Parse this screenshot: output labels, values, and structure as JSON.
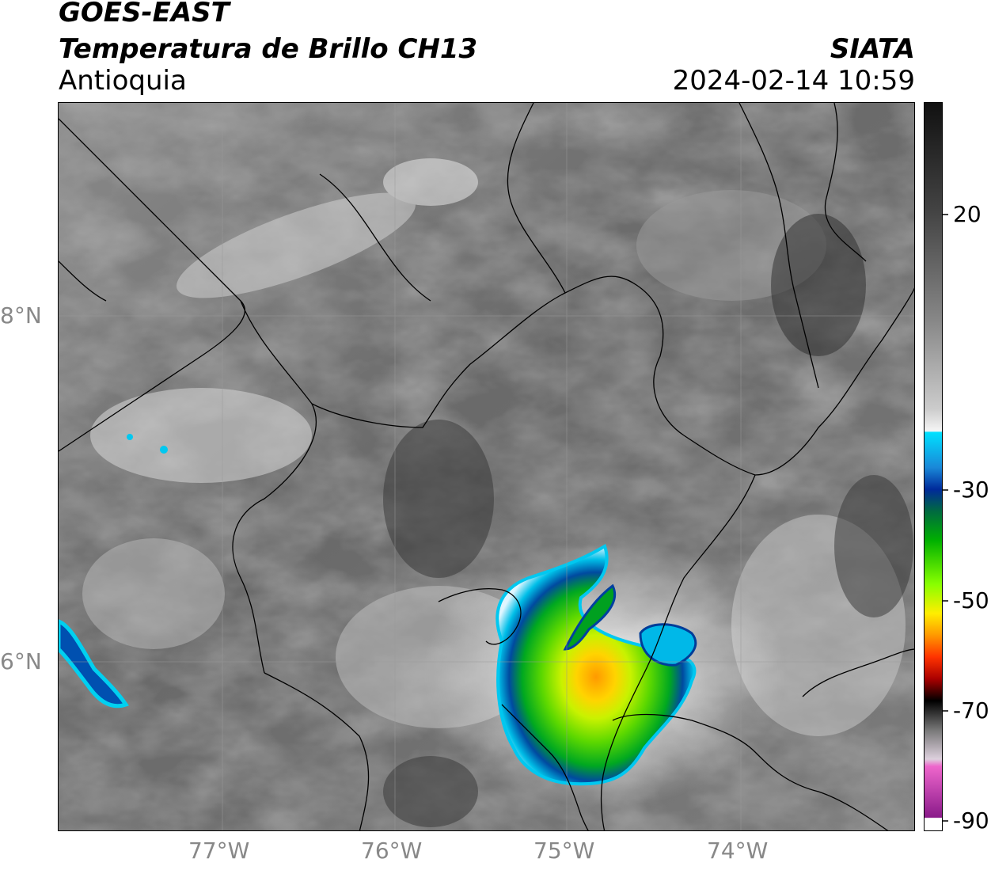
{
  "header": {
    "satellite": "GOES-EAST",
    "product": "Temperatura de Brillo CH13",
    "region": "Antioquia",
    "agency": "SIATA",
    "timestamp": "2024-02-14 10:59"
  },
  "axes": {
    "lat_labels": [
      "8°N",
      "6°N"
    ],
    "lon_labels": [
      "77°W",
      "76°W",
      "75°W",
      "74°W"
    ]
  },
  "colorbar": {
    "tick_labels": [
      "20",
      "-30",
      "-50",
      "-70",
      "-90"
    ],
    "colors": {
      "dark": "#111111",
      "gray": "#888888",
      "light": "#f5f5f5",
      "cyan": "#00e0ff",
      "blue": "#002a9a",
      "green": "#00b000",
      "lime": "#88ff00",
      "yellow": "#ffee00",
      "orange": "#ff9900",
      "red": "#ee0000",
      "black": "#000000",
      "pink": "#ee66cc",
      "purple": "#8a1a8a"
    }
  }
}
